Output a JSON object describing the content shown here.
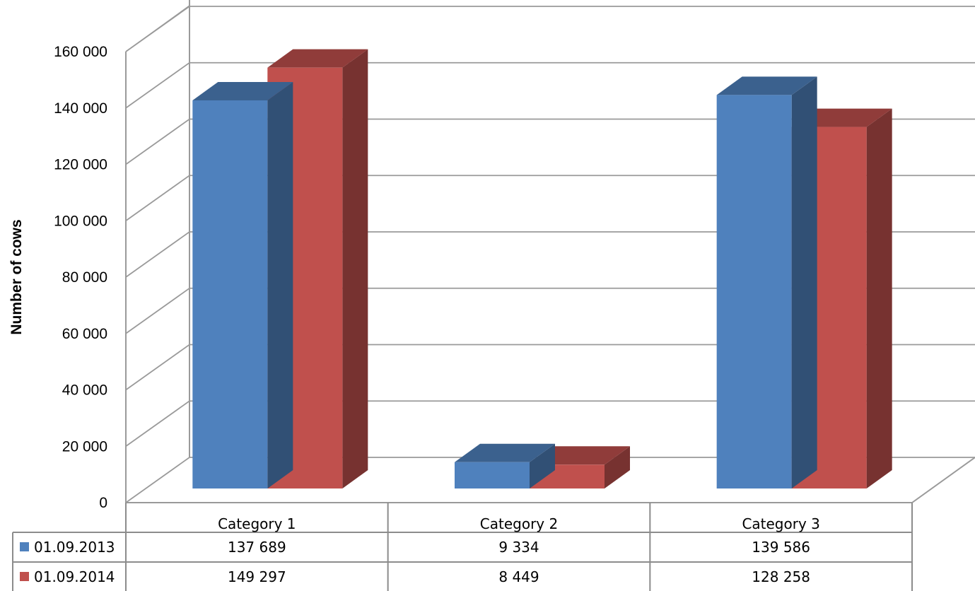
{
  "chart_data": {
    "type": "bar",
    "style": "3d-clustered-column-with-data-table",
    "categories": [
      "Category 1",
      "Category 2",
      "Category 3"
    ],
    "series": [
      {
        "name": "01.09.2013",
        "values": [
          137689,
          9334,
          139586
        ],
        "color": "#4F81BD",
        "labels": [
          "137 689",
          "9 334",
          "139 586"
        ]
      },
      {
        "name": "01.09.2014",
        "values": [
          149297,
          8449,
          128258
        ],
        "color": "#C0504D",
        "labels": [
          "149 297",
          "8 449",
          "128 258"
        ]
      }
    ],
    "ylabel": "Number of cows",
    "ylim": [
      0,
      160000
    ],
    "yticks": [
      {
        "value": 0,
        "label": "0"
      },
      {
        "value": 20000,
        "label": "20 000"
      },
      {
        "value": 40000,
        "label": "40 000"
      },
      {
        "value": 60000,
        "label": "60 000"
      },
      {
        "value": 80000,
        "label": "80 000"
      },
      {
        "value": 100000,
        "label": "100 000"
      },
      {
        "value": 120000,
        "label": "120 000"
      },
      {
        "value": 140000,
        "label": "140 000"
      },
      {
        "value": 160000,
        "label": "160 000"
      }
    ],
    "grid": true,
    "legend": "data-table"
  }
}
